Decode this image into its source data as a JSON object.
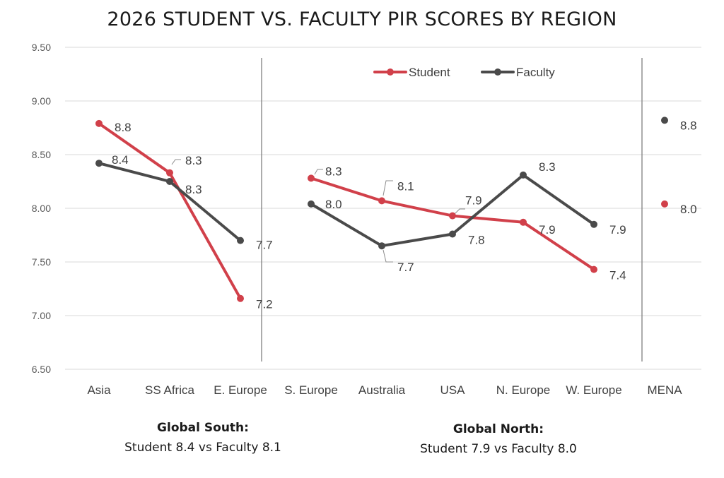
{
  "chart_data": {
    "type": "line",
    "title": "2026 STUDENT VS. FACULTY PIR SCORES BY REGION",
    "categories": [
      "Asia",
      "SS Africa",
      "E. Europe",
      "S. Europe",
      "Australia",
      "USA",
      "N. Europe",
      "W. Europe",
      "MENA"
    ],
    "ylim": [
      6.5,
      9.5
    ],
    "yticks": [
      "6.50",
      "7.00",
      "7.50",
      "8.00",
      "8.50",
      "9.00",
      "9.50"
    ],
    "grid": true,
    "legend_position": "top",
    "series": [
      {
        "name": "Student",
        "color": "#d1404a",
        "values": [
          8.79,
          8.33,
          7.16,
          8.28,
          8.07,
          7.93,
          7.87,
          7.43,
          8.04
        ],
        "labels": [
          "8.8",
          "8.3",
          "7.2",
          "8.3",
          "8.1",
          "7.9",
          "7.9",
          "7.4",
          "8.0"
        ]
      },
      {
        "name": "Faculty",
        "color": "#4a4a4a",
        "values": [
          8.42,
          8.25,
          7.7,
          8.04,
          7.65,
          7.76,
          8.31,
          7.85,
          8.82
        ],
        "labels": [
          "8.4",
          "8.3",
          "7.7",
          "8.0",
          "7.7",
          "7.8",
          "8.3",
          "7.9",
          "8.8"
        ]
      }
    ],
    "line_segments": [
      [
        0,
        2
      ],
      [
        3,
        7
      ],
      [
        8,
        8
      ]
    ],
    "group_dividers_after": [
      "E. Europe",
      "W. Europe"
    ]
  },
  "notes": {
    "south": {
      "heading": "Global South:",
      "text": "Student 8.4 vs Faculty 8.1"
    },
    "north": {
      "heading": "Global North:",
      "text": "Student 7.9 vs Faculty 8.0"
    }
  }
}
